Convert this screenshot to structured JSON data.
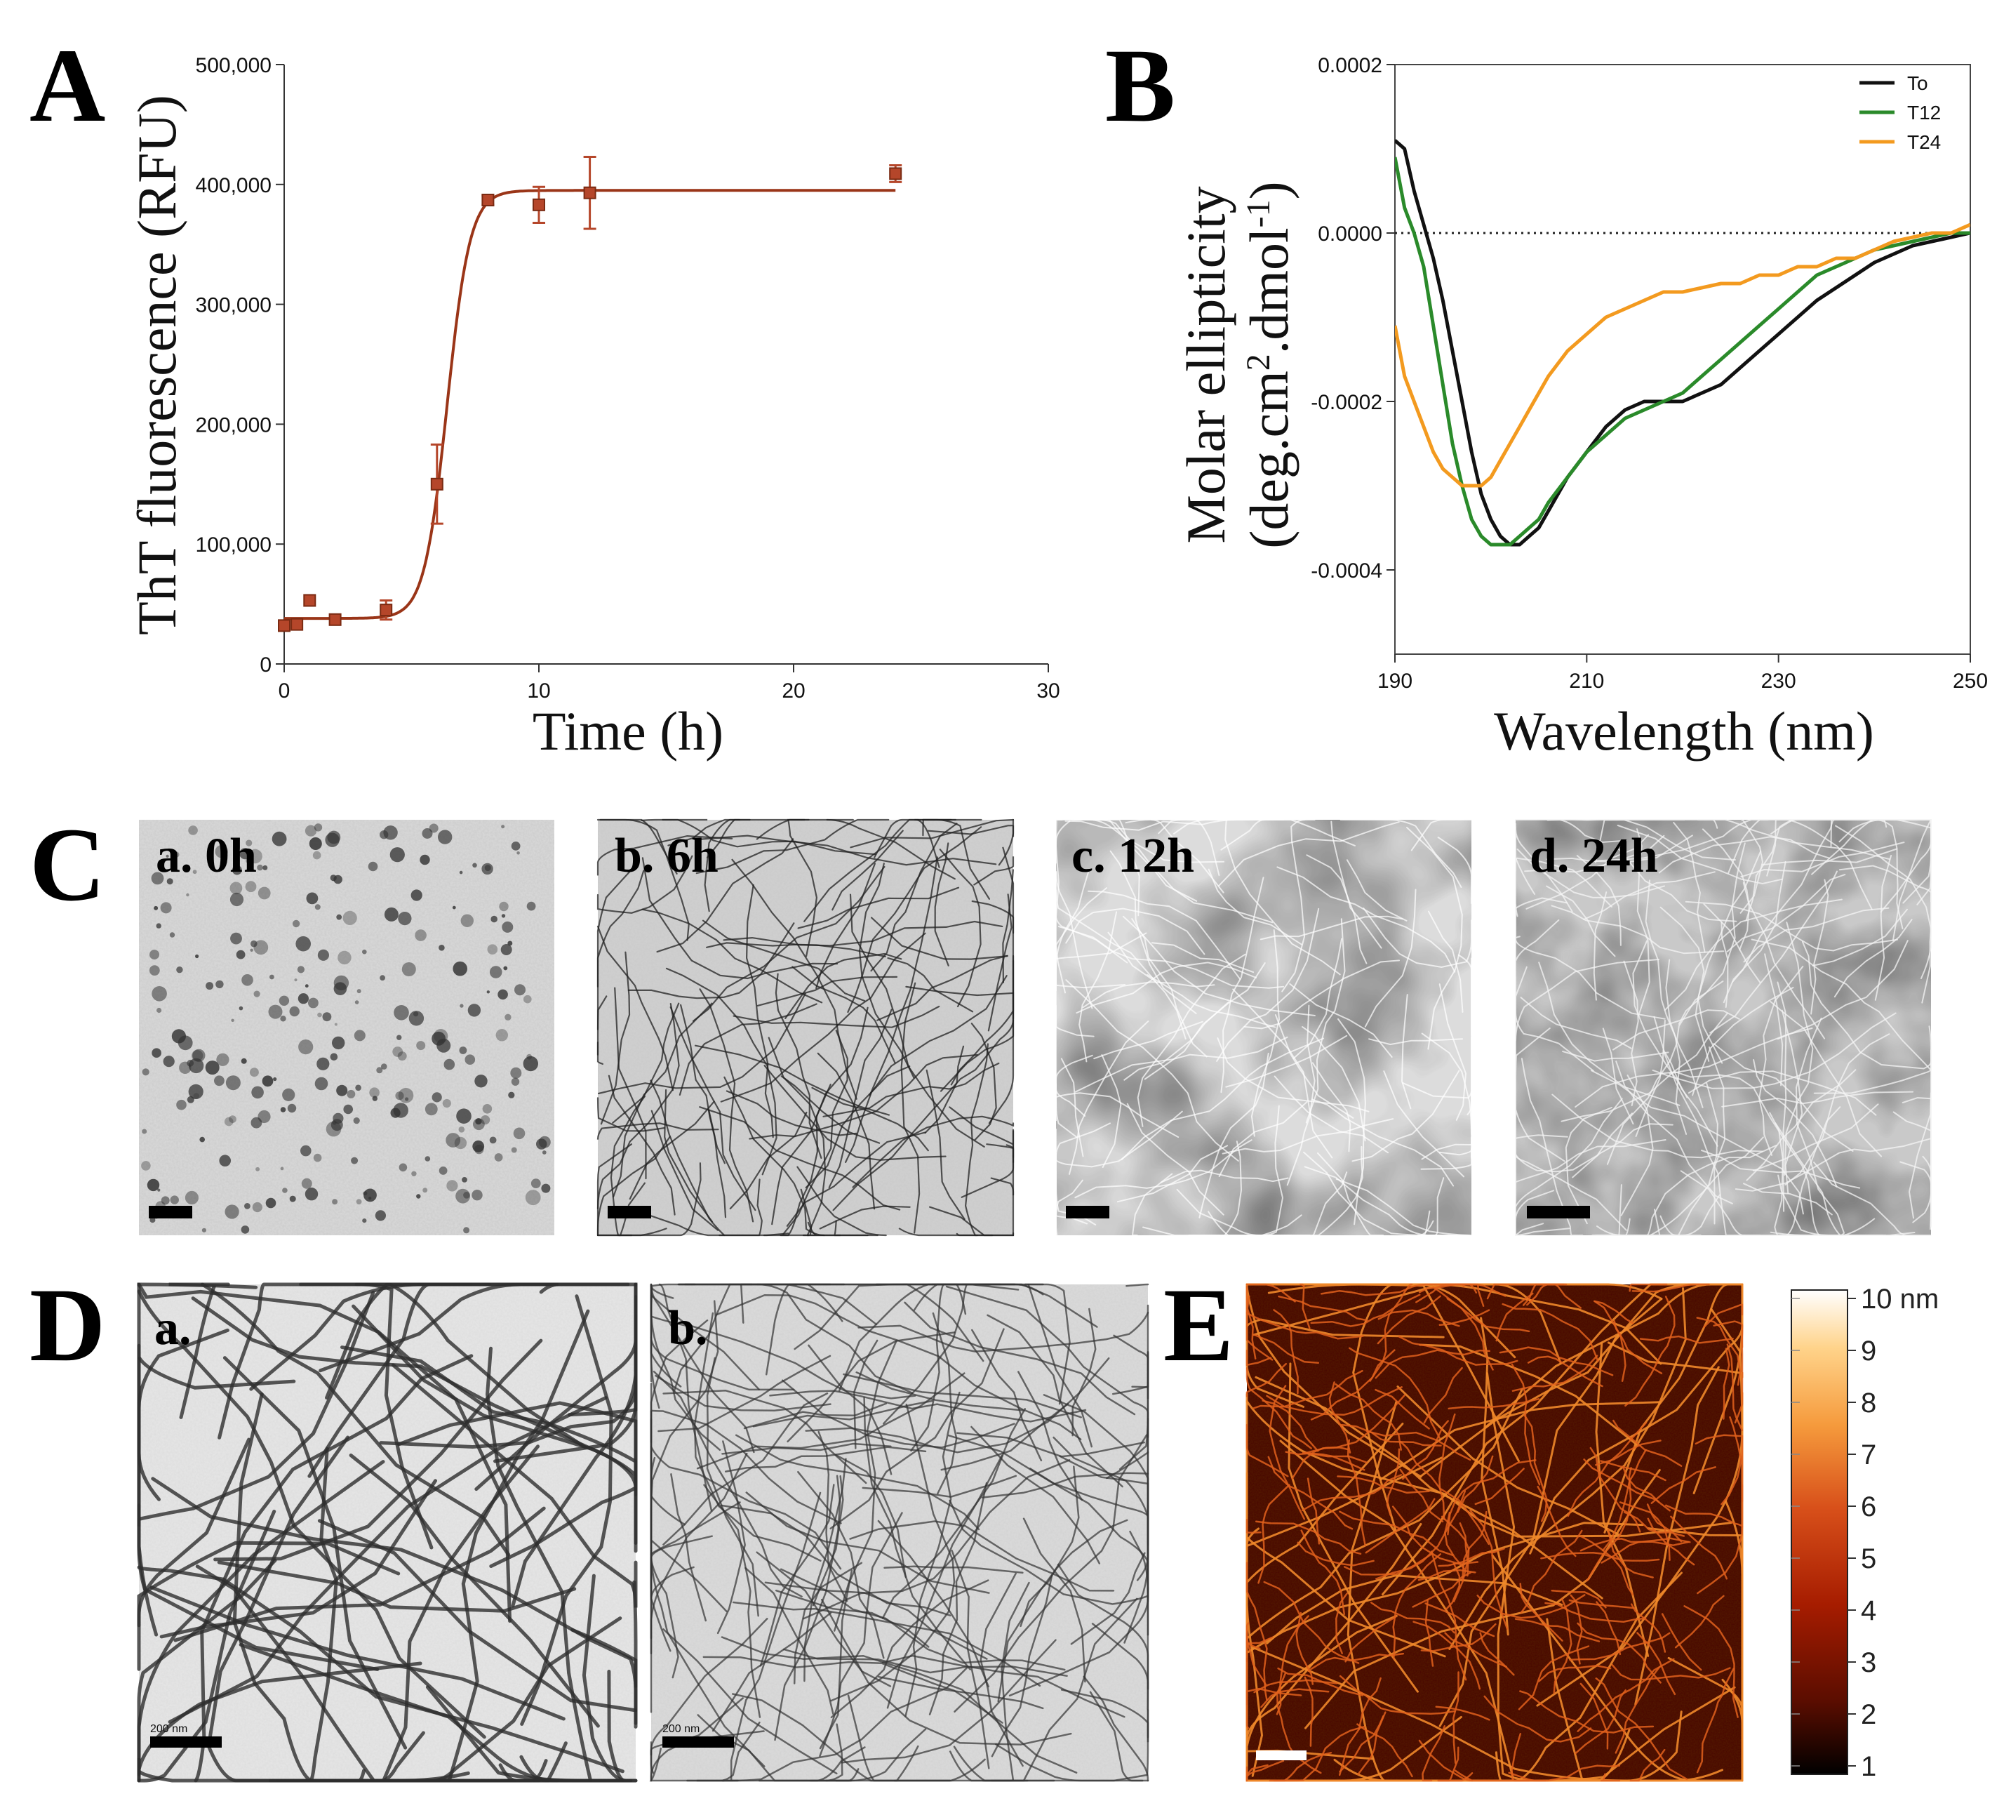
{
  "panels": {
    "A": "A",
    "B": "B",
    "C": "C",
    "D": "D",
    "E": "E"
  },
  "chart_data": [
    {
      "type": "scatter",
      "panel": "A",
      "title": "",
      "xlabel": "Time (h)",
      "ylabel": "ThT fluorescence (RFU)",
      "xlim": [
        0,
        30
      ],
      "ylim": [
        0,
        500000
      ],
      "xticks": [
        0,
        10,
        20,
        30
      ],
      "yticks": [
        0,
        100000,
        200000,
        300000,
        400000,
        500000
      ],
      "ytick_labels": [
        "0",
        "100,000",
        "200,000",
        "300,000",
        "400,000",
        "500,000"
      ],
      "marker_color": "#b5462a",
      "fit_color": "#9a3518",
      "points": [
        {
          "x": 0,
          "y": 32000,
          "err": 0
        },
        {
          "x": 0.5,
          "y": 33000,
          "err": 0
        },
        {
          "x": 1,
          "y": 53000,
          "err": 0
        },
        {
          "x": 2,
          "y": 37000,
          "err": 0
        },
        {
          "x": 4,
          "y": 45000,
          "err": 8000
        },
        {
          "x": 6,
          "y": 150000,
          "err": 33000
        },
        {
          "x": 8,
          "y": 387000,
          "err": 4000
        },
        {
          "x": 10,
          "y": 383000,
          "err": 15000
        },
        {
          "x": 12,
          "y": 393000,
          "err": 30000
        },
        {
          "x": 24,
          "y": 409000,
          "err": 7000
        }
      ],
      "fit": {
        "model": "sigmoid",
        "baseline": 38000,
        "plateau": 395000,
        "midpoint": 6.4,
        "slope": 0.45,
        "x_end": 24
      }
    },
    {
      "type": "line",
      "panel": "B",
      "title": "",
      "xlabel": "Wavelength (nm)",
      "ylabel_line1": "Molar ellipticity",
      "ylabel_line2_prefix": "(deg.cm",
      "ylabel_line2_sup1": "2",
      "ylabel_line2_mid": ".dmol",
      "ylabel_line2_sup2": "-1",
      "ylabel_line2_suffix": ")",
      "xlim": [
        190,
        250
      ],
      "ylim": [
        -0.0005,
        0.0002
      ],
      "xticks": [
        190,
        210,
        230,
        250
      ],
      "yticks": [
        -0.0004,
        -0.0002,
        0.0,
        0.0002
      ],
      "ytick_labels": [
        "-0.0004",
        "-0.0002",
        "0.0000",
        "0.0002"
      ],
      "zero_line": "dotted",
      "legend_position": "top-right",
      "series": [
        {
          "name": "To",
          "color": "#111111",
          "x": [
            190,
            191,
            192,
            193,
            194,
            195,
            196,
            197,
            198,
            199,
            200,
            201,
            202,
            203,
            204,
            205,
            206,
            208,
            210,
            212,
            214,
            216,
            218,
            220,
            222,
            224,
            226,
            228,
            230,
            232,
            234,
            236,
            238,
            240,
            242,
            244,
            246,
            248,
            250
          ],
          "y": [
            0.00011,
            0.0001,
            5e-05,
            1e-05,
            -3e-05,
            -8e-05,
            -0.00014,
            -0.0002,
            -0.00026,
            -0.00031,
            -0.00034,
            -0.00036,
            -0.00037,
            -0.00037,
            -0.00036,
            -0.00035,
            -0.00033,
            -0.00029,
            -0.00026,
            -0.00023,
            -0.00021,
            -0.0002,
            -0.0002,
            -0.0002,
            -0.00019,
            -0.00018,
            -0.00016,
            -0.00014,
            -0.00012,
            -0.0001,
            -8e-05,
            -6.5e-05,
            -5e-05,
            -3.5e-05,
            -2.5e-05,
            -1.5e-05,
            -1e-05,
            -5e-06,
            0.0
          ]
        },
        {
          "name": "T12",
          "color": "#2a8a2a",
          "x": [
            190,
            191,
            192,
            193,
            194,
            195,
            196,
            197,
            198,
            199,
            200,
            201,
            202,
            203,
            204,
            205,
            206,
            208,
            210,
            212,
            214,
            216,
            218,
            220,
            222,
            224,
            226,
            228,
            230,
            232,
            234,
            236,
            238,
            240,
            242,
            244,
            246,
            248,
            250
          ],
          "y": [
            9e-05,
            3e-05,
            0.0,
            -4e-05,
            -0.00011,
            -0.00018,
            -0.00025,
            -0.0003,
            -0.00034,
            -0.00036,
            -0.00037,
            -0.00037,
            -0.00037,
            -0.00036,
            -0.00035,
            -0.00034,
            -0.00032,
            -0.00029,
            -0.00026,
            -0.00024,
            -0.00022,
            -0.00021,
            -0.0002,
            -0.00019,
            -0.00017,
            -0.00015,
            -0.00013,
            -0.00011,
            -9e-05,
            -7e-05,
            -5e-05,
            -4e-05,
            -3e-05,
            -2e-05,
            -1.5e-05,
            -1e-05,
            -5e-06,
            0.0,
            0.0
          ]
        },
        {
          "name": "T24",
          "color": "#f39a1f",
          "x": [
            190,
            191,
            192,
            193,
            194,
            195,
            196,
            197,
            198,
            199,
            200,
            201,
            202,
            203,
            204,
            205,
            206,
            208,
            210,
            212,
            214,
            216,
            218,
            220,
            222,
            224,
            226,
            228,
            230,
            232,
            234,
            236,
            238,
            240,
            242,
            244,
            246,
            248,
            250
          ],
          "y": [
            -0.00011,
            -0.00017,
            -0.0002,
            -0.00023,
            -0.00026,
            -0.00028,
            -0.00029,
            -0.0003,
            -0.0003,
            -0.0003,
            -0.00029,
            -0.00027,
            -0.00025,
            -0.00023,
            -0.00021,
            -0.00019,
            -0.00017,
            -0.00014,
            -0.00012,
            -0.0001,
            -9e-05,
            -8e-05,
            -7e-05,
            -7e-05,
            -6.5e-05,
            -6e-05,
            -6e-05,
            -5e-05,
            -5e-05,
            -4e-05,
            -4e-05,
            -3e-05,
            -3e-05,
            -2e-05,
            -1e-05,
            -5e-06,
            0.0,
            0.0,
            1e-05
          ]
        }
      ]
    },
    {
      "type": "heatmap",
      "panel": "E",
      "colorbar_label_unit": "10 nm",
      "colorbar_ticks": [
        "10 nm",
        "9",
        "8",
        "7",
        "6",
        "5",
        "4",
        "3",
        "2",
        "1"
      ],
      "colorbar_range": [
        1,
        10
      ],
      "colorscale": [
        "#000000",
        "#5a0d00",
        "#a61c00",
        "#d8501a",
        "#f59a3c",
        "#ffd38a",
        "#ffffff"
      ]
    }
  ],
  "micrographs": {
    "C": [
      {
        "label": "a. 0h"
      },
      {
        "label": "b. 6h"
      },
      {
        "label": "c. 12h"
      },
      {
        "label": "d. 24h"
      }
    ],
    "D": [
      {
        "label": "a.",
        "scale_text": "200 nm"
      },
      {
        "label": "b.",
        "scale_text": "200 nm"
      }
    ]
  }
}
